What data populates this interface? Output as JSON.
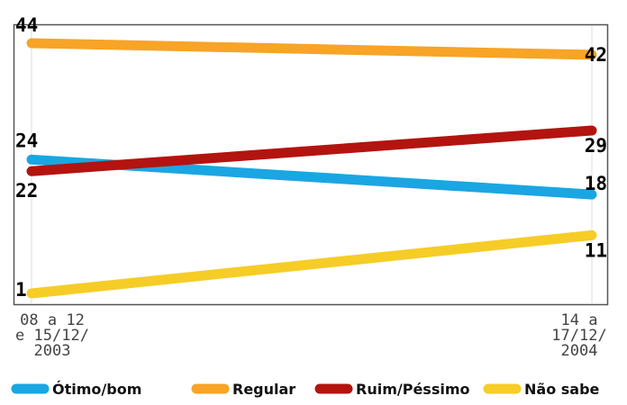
{
  "chart_data": {
    "type": "line",
    "categories": [
      [
        "08 a 12",
        "e 15/12/",
        "2003"
      ],
      [
        "14 a",
        "17/12/",
        "2004"
      ]
    ],
    "series": [
      {
        "name": "Ótimo/bom",
        "color": "#1aa6e2",
        "values": [
          24,
          18
        ]
      },
      {
        "name": "Regular",
        "color": "#f7a427",
        "values": [
          44,
          42
        ]
      },
      {
        "name": "Ruim/Péssimo",
        "color": "#b3140f",
        "values": [
          22,
          29
        ]
      },
      {
        "name": "Não sabe",
        "color": "#f6cc27",
        "values": [
          1,
          11
        ]
      }
    ],
    "ylim": [
      1,
      44
    ],
    "grid": false,
    "legend_position": "bottom"
  }
}
